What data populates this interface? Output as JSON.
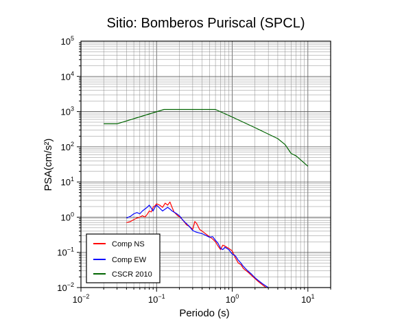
{
  "chart_data": {
    "type": "line",
    "title": "Sitio: Bomberos Puriscal (SPCL)",
    "xlabel": "Periodo (s)",
    "ylabel": "PSA(cm/s²)",
    "xscale": "log",
    "yscale": "log",
    "xlim": [
      0.01,
      20
    ],
    "ylim": [
      0.01,
      100000
    ],
    "grid": true,
    "legend_position": "bottom-left",
    "x_ticks": [
      {
        "base": "10",
        "exp": "−2"
      },
      {
        "base": "10",
        "exp": "−1"
      },
      {
        "base": "10",
        "exp": "0"
      },
      {
        "base": "10",
        "exp": "1"
      }
    ],
    "y_ticks": [
      {
        "base": "10",
        "exp": "−2"
      },
      {
        "base": "10",
        "exp": "−1"
      },
      {
        "base": "10",
        "exp": "0"
      },
      {
        "base": "10",
        "exp": "1"
      },
      {
        "base": "10",
        "exp": "2"
      },
      {
        "base": "10",
        "exp": "3"
      },
      {
        "base": "10",
        "exp": "4"
      },
      {
        "base": "10",
        "exp": "5"
      }
    ],
    "series": [
      {
        "name": "Comp NS",
        "color": "#ff0000",
        "points": [
          [
            0.04,
            0.7
          ],
          [
            0.045,
            0.75
          ],
          [
            0.05,
            0.85
          ],
          [
            0.055,
            0.95
          ],
          [
            0.06,
            1.0
          ],
          [
            0.065,
            1.1
          ],
          [
            0.07,
            1.0
          ],
          [
            0.075,
            1.2
          ],
          [
            0.08,
            1.5
          ],
          [
            0.085,
            1.4
          ],
          [
            0.09,
            1.9
          ],
          [
            0.095,
            2.1
          ],
          [
            0.1,
            2.4
          ],
          [
            0.11,
            2.2
          ],
          [
            0.12,
            1.9
          ],
          [
            0.13,
            2.5
          ],
          [
            0.14,
            2.2
          ],
          [
            0.15,
            2.7
          ],
          [
            0.16,
            1.9
          ],
          [
            0.17,
            1.4
          ],
          [
            0.19,
            1.1
          ],
          [
            0.21,
            0.95
          ],
          [
            0.23,
            0.75
          ],
          [
            0.25,
            0.6
          ],
          [
            0.27,
            0.55
          ],
          [
            0.3,
            0.45
          ],
          [
            0.32,
            0.75
          ],
          [
            0.34,
            0.65
          ],
          [
            0.37,
            0.45
          ],
          [
            0.4,
            0.4
          ],
          [
            0.45,
            0.33
          ],
          [
            0.5,
            0.28
          ],
          [
            0.55,
            0.24
          ],
          [
            0.6,
            0.2
          ],
          [
            0.65,
            0.15
          ],
          [
            0.7,
            0.12
          ],
          [
            0.75,
            0.16
          ],
          [
            0.8,
            0.15
          ],
          [
            0.9,
            0.13
          ],
          [
            1.0,
            0.11
          ],
          [
            1.1,
            0.07
          ],
          [
            1.2,
            0.05
          ],
          [
            1.3,
            0.045
          ],
          [
            1.4,
            0.035
          ],
          [
            1.6,
            0.028
          ],
          [
            1.8,
            0.022
          ],
          [
            2.0,
            0.018
          ],
          [
            2.2,
            0.015
          ],
          [
            2.5,
            0.012
          ],
          [
            2.8,
            0.01
          ]
        ]
      },
      {
        "name": "Comp EW",
        "color": "#0000ff",
        "points": [
          [
            0.04,
            0.95
          ],
          [
            0.045,
            1.05
          ],
          [
            0.05,
            1.25
          ],
          [
            0.055,
            1.35
          ],
          [
            0.06,
            1.25
          ],
          [
            0.065,
            1.5
          ],
          [
            0.07,
            1.7
          ],
          [
            0.075,
            1.9
          ],
          [
            0.08,
            2.2
          ],
          [
            0.085,
            1.8
          ],
          [
            0.09,
            1.5
          ],
          [
            0.095,
            1.9
          ],
          [
            0.1,
            2.2
          ],
          [
            0.11,
            1.8
          ],
          [
            0.12,
            1.5
          ],
          [
            0.13,
            1.7
          ],
          [
            0.14,
            1.9
          ],
          [
            0.15,
            1.7
          ],
          [
            0.16,
            1.5
          ],
          [
            0.18,
            1.3
          ],
          [
            0.2,
            1.1
          ],
          [
            0.22,
            0.85
          ],
          [
            0.24,
            0.7
          ],
          [
            0.26,
            0.6
          ],
          [
            0.28,
            0.5
          ],
          [
            0.3,
            0.42
          ],
          [
            0.33,
            0.38
          ],
          [
            0.36,
            0.36
          ],
          [
            0.4,
            0.34
          ],
          [
            0.45,
            0.3
          ],
          [
            0.5,
            0.27
          ],
          [
            0.55,
            0.28
          ],
          [
            0.6,
            0.22
          ],
          [
            0.65,
            0.18
          ],
          [
            0.7,
            0.13
          ],
          [
            0.75,
            0.12
          ],
          [
            0.8,
            0.14
          ],
          [
            0.9,
            0.12
          ],
          [
            1.0,
            0.09
          ],
          [
            1.1,
            0.08
          ],
          [
            1.2,
            0.06
          ],
          [
            1.3,
            0.05
          ],
          [
            1.4,
            0.04
          ],
          [
            1.6,
            0.03
          ],
          [
            1.8,
            0.024
          ],
          [
            2.0,
            0.019
          ],
          [
            2.2,
            0.016
          ],
          [
            2.5,
            0.013
          ],
          [
            2.8,
            0.011
          ],
          [
            3.0,
            0.01
          ]
        ]
      },
      {
        "name": "CSCR 2010",
        "color": "#006400",
        "points": [
          [
            0.02,
            450
          ],
          [
            0.03,
            450
          ],
          [
            0.125,
            1150
          ],
          [
            0.6,
            1150
          ],
          [
            1.0,
            700
          ],
          [
            2.0,
            350
          ],
          [
            4.0,
            170
          ],
          [
            5.0,
            115
          ],
          [
            6.0,
            65
          ],
          [
            7.0,
            55
          ],
          [
            10.0,
            28
          ]
        ]
      }
    ]
  }
}
